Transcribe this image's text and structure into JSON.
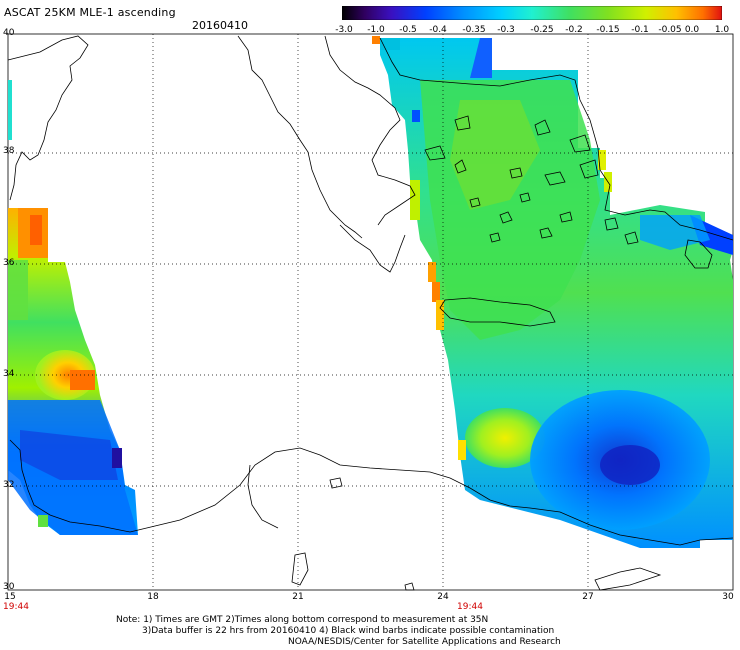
{
  "header": {
    "title": "ASCAT 25KM MLE-1 ascending",
    "date": "20160410"
  },
  "colorbar": {
    "labels": [
      "-3.0",
      "-1.0",
      "-0.5",
      "-0.4",
      "-0.35",
      "-0.3",
      "-0.25",
      "-0.2",
      "-0.15",
      "-0.1",
      "-0.05",
      "0.0",
      "1.0"
    ],
    "colors": [
      "#000000",
      "#3a0080",
      "#3010d0",
      "#0050ff",
      "#0090ff",
      "#00d0ff",
      "#20f0c0",
      "#40e060",
      "#70e020",
      "#c0f000",
      "#ffd000",
      "#ff8000",
      "#e02000"
    ]
  },
  "axes": {
    "lat_labels": [
      "40",
      "38",
      "36",
      "34",
      "32",
      "30"
    ],
    "lon_labels": [
      "15",
      "18",
      "21",
      "24",
      "27",
      "30"
    ],
    "lon_range": [
      15,
      30
    ],
    "lat_range": [
      30,
      40
    ]
  },
  "times": [
    "19:44",
    "19:44"
  ],
  "notes": {
    "line1": "Note: 1) Times are GMT 2)Times along bottom correspond to measurement at 35N",
    "line2": "3)Data buffer is 22 hrs from 20160410 4) Black wind barbs indicate possible contamination",
    "line3": "NOAA/NESDIS/Center for Satellite Applications and Research"
  }
}
